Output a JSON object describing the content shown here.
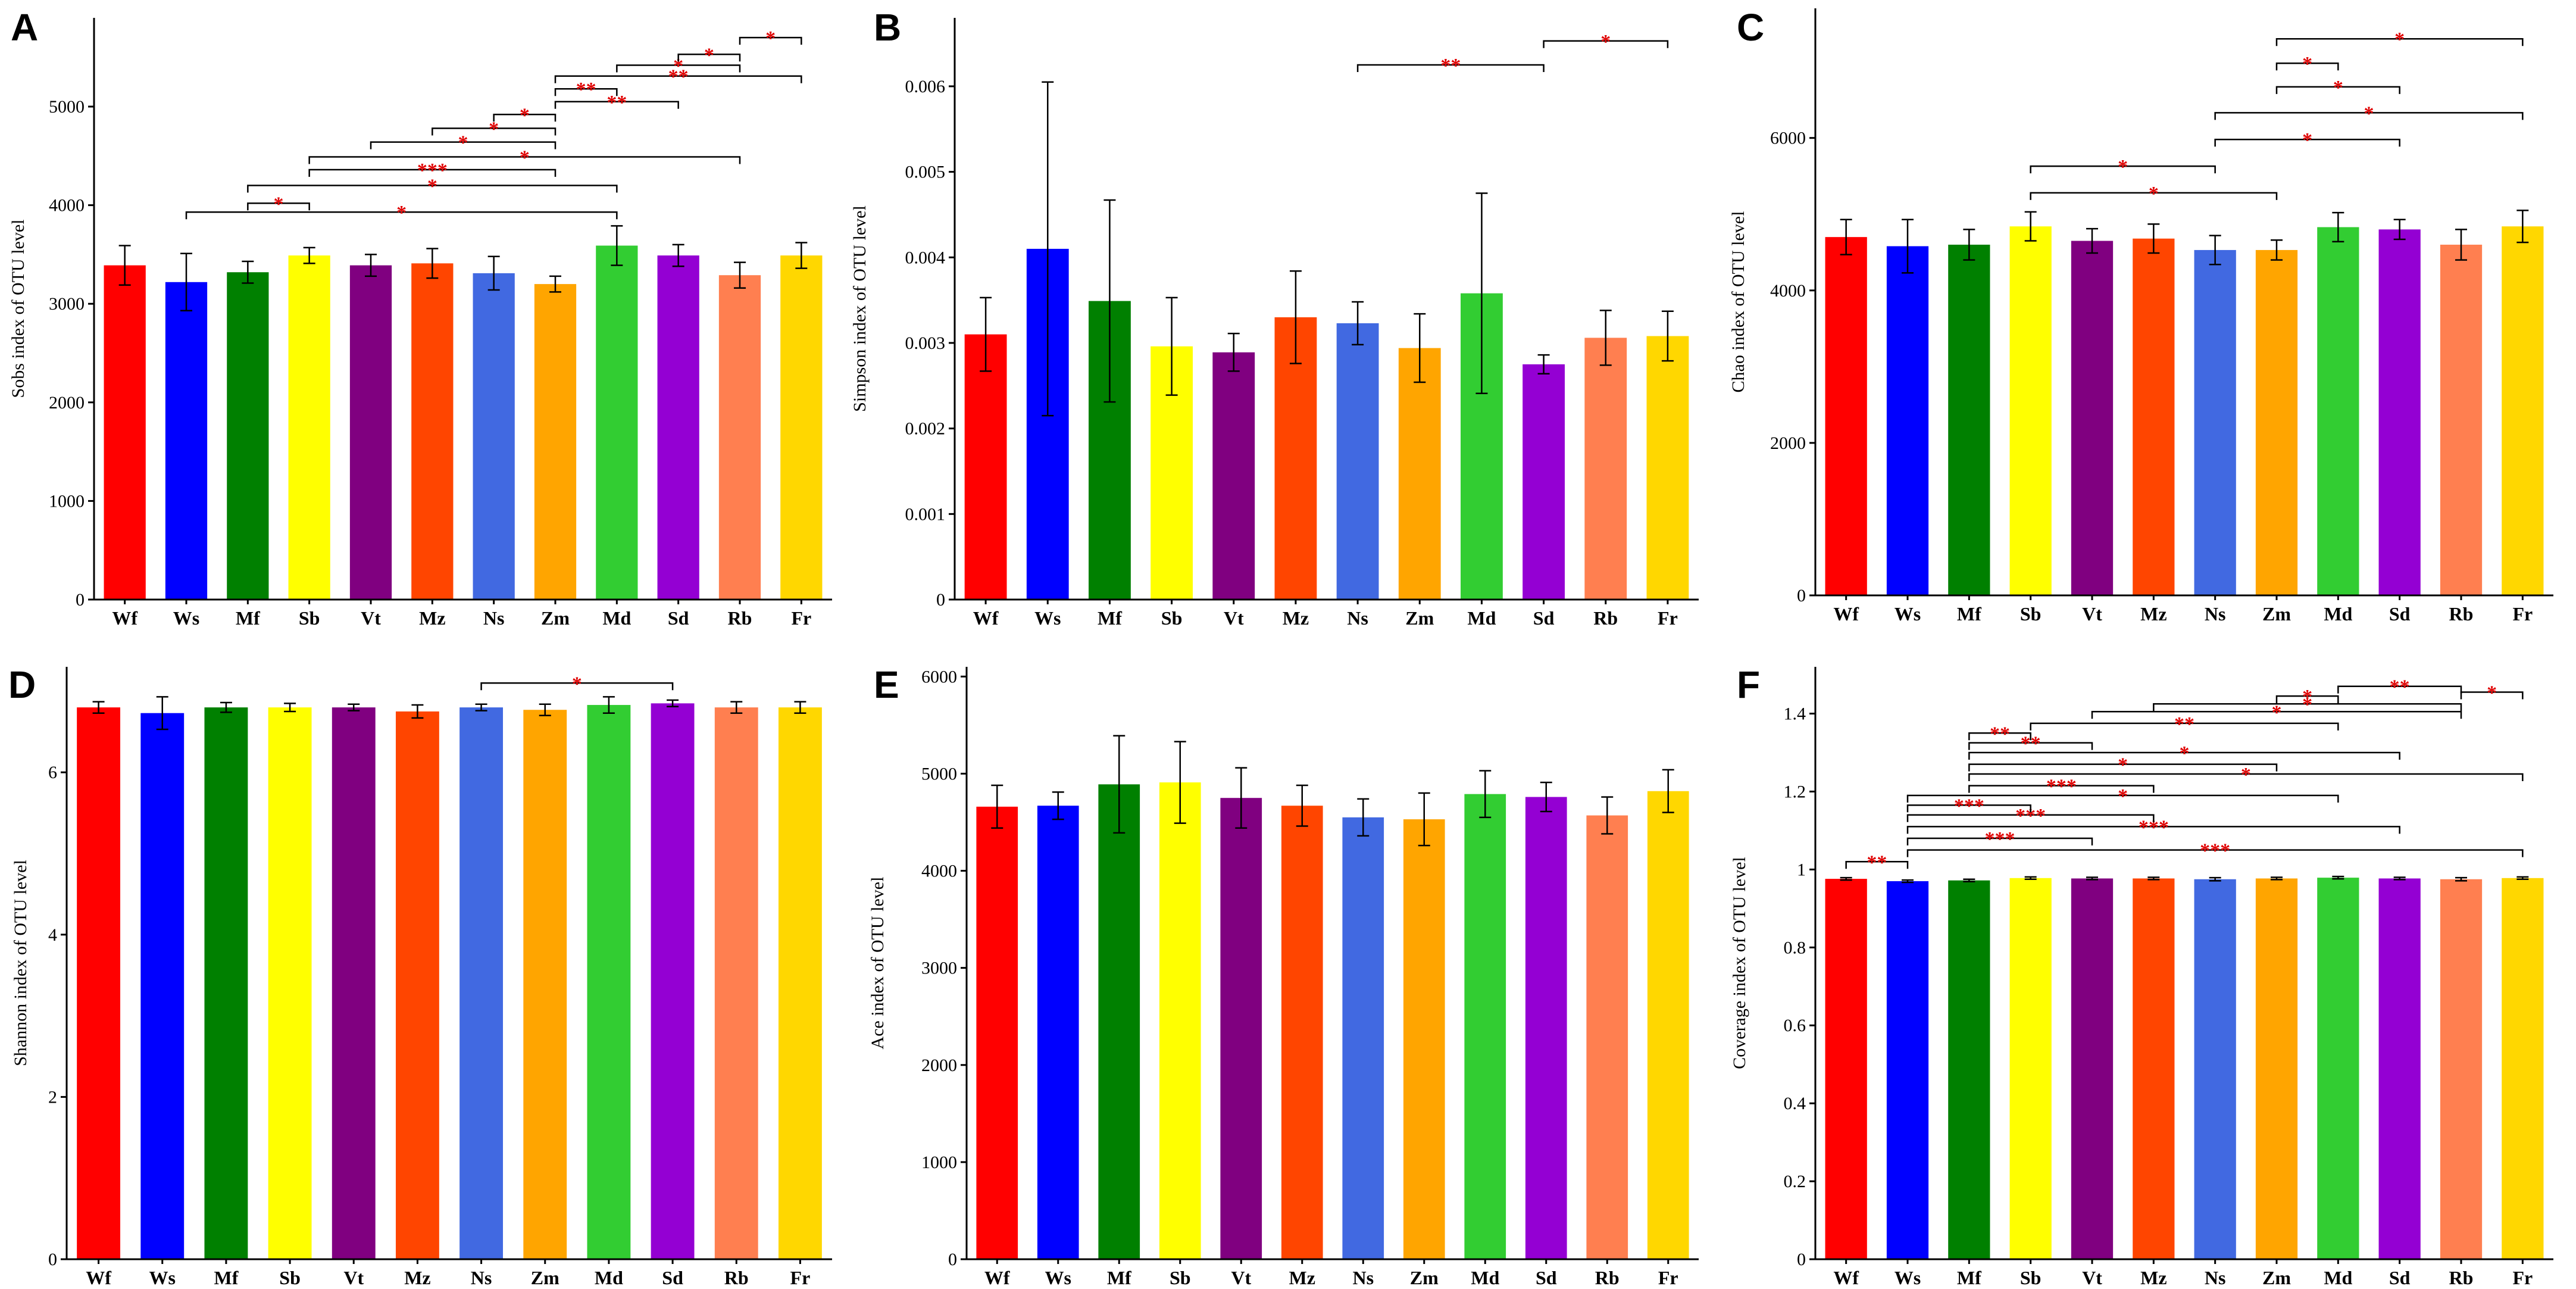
{
  "colors": [
    "#ff0000",
    "#0000ff",
    "#008000",
    "#ffff00",
    "#800080",
    "#ff4500",
    "#4169e1",
    "#ffa500",
    "#32cd32",
    "#9400d3",
    "#ff7f50",
    "#ffd700"
  ],
  "chart_data": [
    {
      "letter": "A",
      "type": "bar",
      "ylabel": "Sobs index of OTU level",
      "categories": [
        "Wf",
        "Ws",
        "Mf",
        "Sb",
        "Vt",
        "Mz",
        "Ns",
        "Zm",
        "Md",
        "Sd",
        "Rb",
        "Fr"
      ],
      "values": [
        3390,
        3220,
        3320,
        3490,
        3390,
        3410,
        3310,
        3200,
        3590,
        3490,
        3290,
        3490
      ],
      "errors": [
        200,
        290,
        110,
        80,
        110,
        150,
        170,
        80,
        200,
        110,
        130,
        130
      ],
      "ylim": [
        0,
        5900
      ],
      "yticks": [
        0,
        1000,
        2000,
        3000,
        4000,
        5000
      ],
      "ytick_labels": [
        "0",
        "1000",
        "2000",
        "3000",
        "4000",
        "5000"
      ],
      "brackets": [
        {
          "i": 1,
          "j": 8,
          "y": 3930,
          "label": "*"
        },
        {
          "i": 2,
          "j": 3,
          "y": 4020,
          "label": "*"
        },
        {
          "i": 2,
          "j": 8,
          "y": 4200,
          "label": "*"
        },
        {
          "i": 3,
          "j": 7,
          "y": 4360,
          "label": "***"
        },
        {
          "i": 3,
          "j": 10,
          "y": 4490,
          "label": "*"
        },
        {
          "i": 4,
          "j": 7,
          "y": 4640,
          "label": "*"
        },
        {
          "i": 5,
          "j": 7,
          "y": 4780,
          "label": "*"
        },
        {
          "i": 6,
          "j": 7,
          "y": 4920,
          "label": "*"
        },
        {
          "i": 7,
          "j": 9,
          "y": 5050,
          "label": "**"
        },
        {
          "i": 7,
          "j": 8,
          "y": 5180,
          "label": "**"
        },
        {
          "i": 7,
          "j": 11,
          "y": 5310,
          "label": "**"
        },
        {
          "i": 8,
          "j": 10,
          "y": 5420,
          "label": "*"
        },
        {
          "i": 9,
          "j": 10,
          "y": 5530,
          "label": "*"
        },
        {
          "i": 10,
          "j": 11,
          "y": 5700,
          "label": "*"
        }
      ]
    },
    {
      "letter": "B",
      "type": "bar",
      "ylabel": "Simpson index of OTU level",
      "categories": [
        "Wf",
        "Ws",
        "Mf",
        "Sb",
        "Vt",
        "Mz",
        "Ns",
        "Zm",
        "Md",
        "Sd",
        "Rb",
        "Fr"
      ],
      "values": [
        0.0031,
        0.0041,
        0.00349,
        0.00296,
        0.00289,
        0.0033,
        0.00323,
        0.00294,
        0.00358,
        0.00275,
        0.00306,
        0.00308
      ],
      "errors": [
        0.00043,
        0.00195,
        0.00118,
        0.00057,
        0.00022,
        0.00054,
        0.00025,
        0.0004,
        0.00117,
        0.00011,
        0.00032,
        0.00029
      ],
      "ylim": [
        0,
        0.0068
      ],
      "yticks": [
        0,
        0.001,
        0.002,
        0.003,
        0.004,
        0.005,
        0.006
      ],
      "ytick_labels": [
        "0",
        "0.001",
        "0.002",
        "0.003",
        "0.004",
        "0.005",
        "0.006"
      ],
      "brackets": [
        {
          "i": 6,
          "j": 9,
          "y": 0.00625,
          "label": "**"
        },
        {
          "i": 9,
          "j": 11,
          "y": 0.00653,
          "label": "*"
        }
      ]
    },
    {
      "letter": "C",
      "type": "bar",
      "ylabel": "Chao index of OTU level",
      "categories": [
        "Wf",
        "Ws",
        "Mf",
        "Sb",
        "Vt",
        "Mz",
        "Ns",
        "Zm",
        "Md",
        "Sd",
        "Rb",
        "Fr"
      ],
      "values": [
        4700,
        4580,
        4600,
        4840,
        4650,
        4680,
        4530,
        4530,
        4830,
        4800,
        4600,
        4840
      ],
      "errors": [
        230,
        350,
        200,
        190,
        160,
        190,
        190,
        130,
        190,
        130,
        200,
        210
      ],
      "ylim": [
        0,
        7700
      ],
      "yticks": [
        0,
        2000,
        4000,
        6000
      ],
      "ytick_labels": [
        "0",
        "2000",
        "4000",
        "6000"
      ],
      "brackets": [
        {
          "i": 3,
          "j": 7,
          "y": 5280,
          "label": "*"
        },
        {
          "i": 3,
          "j": 6,
          "y": 5630,
          "label": "*"
        },
        {
          "i": 6,
          "j": 9,
          "y": 5980,
          "label": "*"
        },
        {
          "i": 6,
          "j": 11,
          "y": 6330,
          "label": "*"
        },
        {
          "i": 7,
          "j": 9,
          "y": 6670,
          "label": "*"
        },
        {
          "i": 7,
          "j": 8,
          "y": 6980,
          "label": "*"
        },
        {
          "i": 7,
          "j": 11,
          "y": 7300,
          "label": "*"
        }
      ]
    },
    {
      "letter": "D",
      "type": "bar",
      "ylabel": "Shannon index of OTU level",
      "categories": [
        "Wf",
        "Ws",
        "Mf",
        "Sb",
        "Vt",
        "Mz",
        "Ns",
        "Zm",
        "Md",
        "Sd",
        "Rb",
        "Fr"
      ],
      "values": [
        6.8,
        6.73,
        6.8,
        6.8,
        6.8,
        6.75,
        6.8,
        6.77,
        6.83,
        6.85,
        6.8,
        6.8
      ],
      "errors": [
        0.07,
        0.2,
        0.06,
        0.05,
        0.04,
        0.08,
        0.04,
        0.07,
        0.1,
        0.04,
        0.07,
        0.07
      ],
      "ylim": [
        0,
        7.3
      ],
      "yticks": [
        0,
        2,
        4,
        6
      ],
      "ytick_labels": [
        "0",
        "2",
        "4",
        "6"
      ],
      "brackets": [
        {
          "i": 6,
          "j": 9,
          "y": 7.1,
          "label": "*"
        }
      ]
    },
    {
      "letter": "E",
      "type": "bar",
      "ylabel": "Ace index of OTU level",
      "categories": [
        "Wf",
        "Ws",
        "Mf",
        "Sb",
        "Vt",
        "Mz",
        "Ns",
        "Zm",
        "Md",
        "Sd",
        "Rb",
        "Fr"
      ],
      "values": [
        4660,
        4670,
        4890,
        4910,
        4750,
        4670,
        4550,
        4530,
        4790,
        4760,
        4570,
        4820
      ],
      "errors": [
        220,
        140,
        500,
        420,
        310,
        210,
        190,
        270,
        240,
        150,
        190,
        220
      ],
      "ylim": [
        0,
        6100
      ],
      "yticks": [
        0,
        1000,
        2000,
        3000,
        4000,
        5000,
        6000
      ],
      "ytick_labels": [
        "0",
        "1000",
        "2000",
        "3000",
        "4000",
        "5000",
        "6000"
      ],
      "brackets": []
    },
    {
      "letter": "F",
      "type": "bar",
      "ylabel": "Coverage index of OTU level",
      "categories": [
        "Wf",
        "Ws",
        "Mf",
        "Sb",
        "Vt",
        "Mz",
        "Ns",
        "Zm",
        "Md",
        "Sd",
        "Rb",
        "Fr"
      ],
      "values": [
        0.976,
        0.97,
        0.972,
        0.978,
        0.977,
        0.977,
        0.975,
        0.977,
        0.979,
        0.977,
        0.975,
        0.978
      ],
      "errors": [
        0.003,
        0.003,
        0.003,
        0.003,
        0.003,
        0.003,
        0.004,
        0.003,
        0.003,
        0.003,
        0.004,
        0.003
      ],
      "ylim": [
        0,
        1.52
      ],
      "yticks": [
        0,
        0.2,
        0.4,
        0.6,
        0.8,
        1,
        1.2,
        1.4
      ],
      "ytick_labels": [
        "0",
        "0.2",
        "0.4",
        "0.6",
        "0.8",
        "1",
        "1.2",
        "1.4"
      ],
      "brackets": [
        {
          "i": 0,
          "j": 1,
          "y": 1.02,
          "label": "**"
        },
        {
          "i": 1,
          "j": 11,
          "y": 1.05,
          "label": "***"
        },
        {
          "i": 1,
          "j": 4,
          "y": 1.08,
          "label": "***"
        },
        {
          "i": 1,
          "j": 9,
          "y": 1.11,
          "label": "***"
        },
        {
          "i": 1,
          "j": 5,
          "y": 1.14,
          "label": "***"
        },
        {
          "i": 1,
          "j": 3,
          "y": 1.165,
          "label": "***"
        },
        {
          "i": 1,
          "j": 8,
          "y": 1.19,
          "label": "*"
        },
        {
          "i": 2,
          "j": 5,
          "y": 1.215,
          "label": "***"
        },
        {
          "i": 2,
          "j": 11,
          "y": 1.245,
          "label": "*"
        },
        {
          "i": 2,
          "j": 7,
          "y": 1.27,
          "label": "*"
        },
        {
          "i": 2,
          "j": 9,
          "y": 1.3,
          "label": "*"
        },
        {
          "i": 2,
          "j": 4,
          "y": 1.325,
          "label": "**"
        },
        {
          "i": 2,
          "j": 3,
          "y": 1.35,
          "label": "**"
        },
        {
          "i": 3,
          "j": 8,
          "y": 1.375,
          "label": "**"
        },
        {
          "i": 4,
          "j": 10,
          "y": 1.405,
          "label": "*"
        },
        {
          "i": 5,
          "j": 10,
          "y": 1.425,
          "label": "*"
        },
        {
          "i": 7,
          "j": 8,
          "y": 1.445,
          "label": "*"
        },
        {
          "i": 8,
          "j": 10,
          "y": 1.47,
          "label": "**"
        },
        {
          "i": 10,
          "j": 11,
          "y": 1.455,
          "label": "*"
        }
      ]
    }
  ]
}
